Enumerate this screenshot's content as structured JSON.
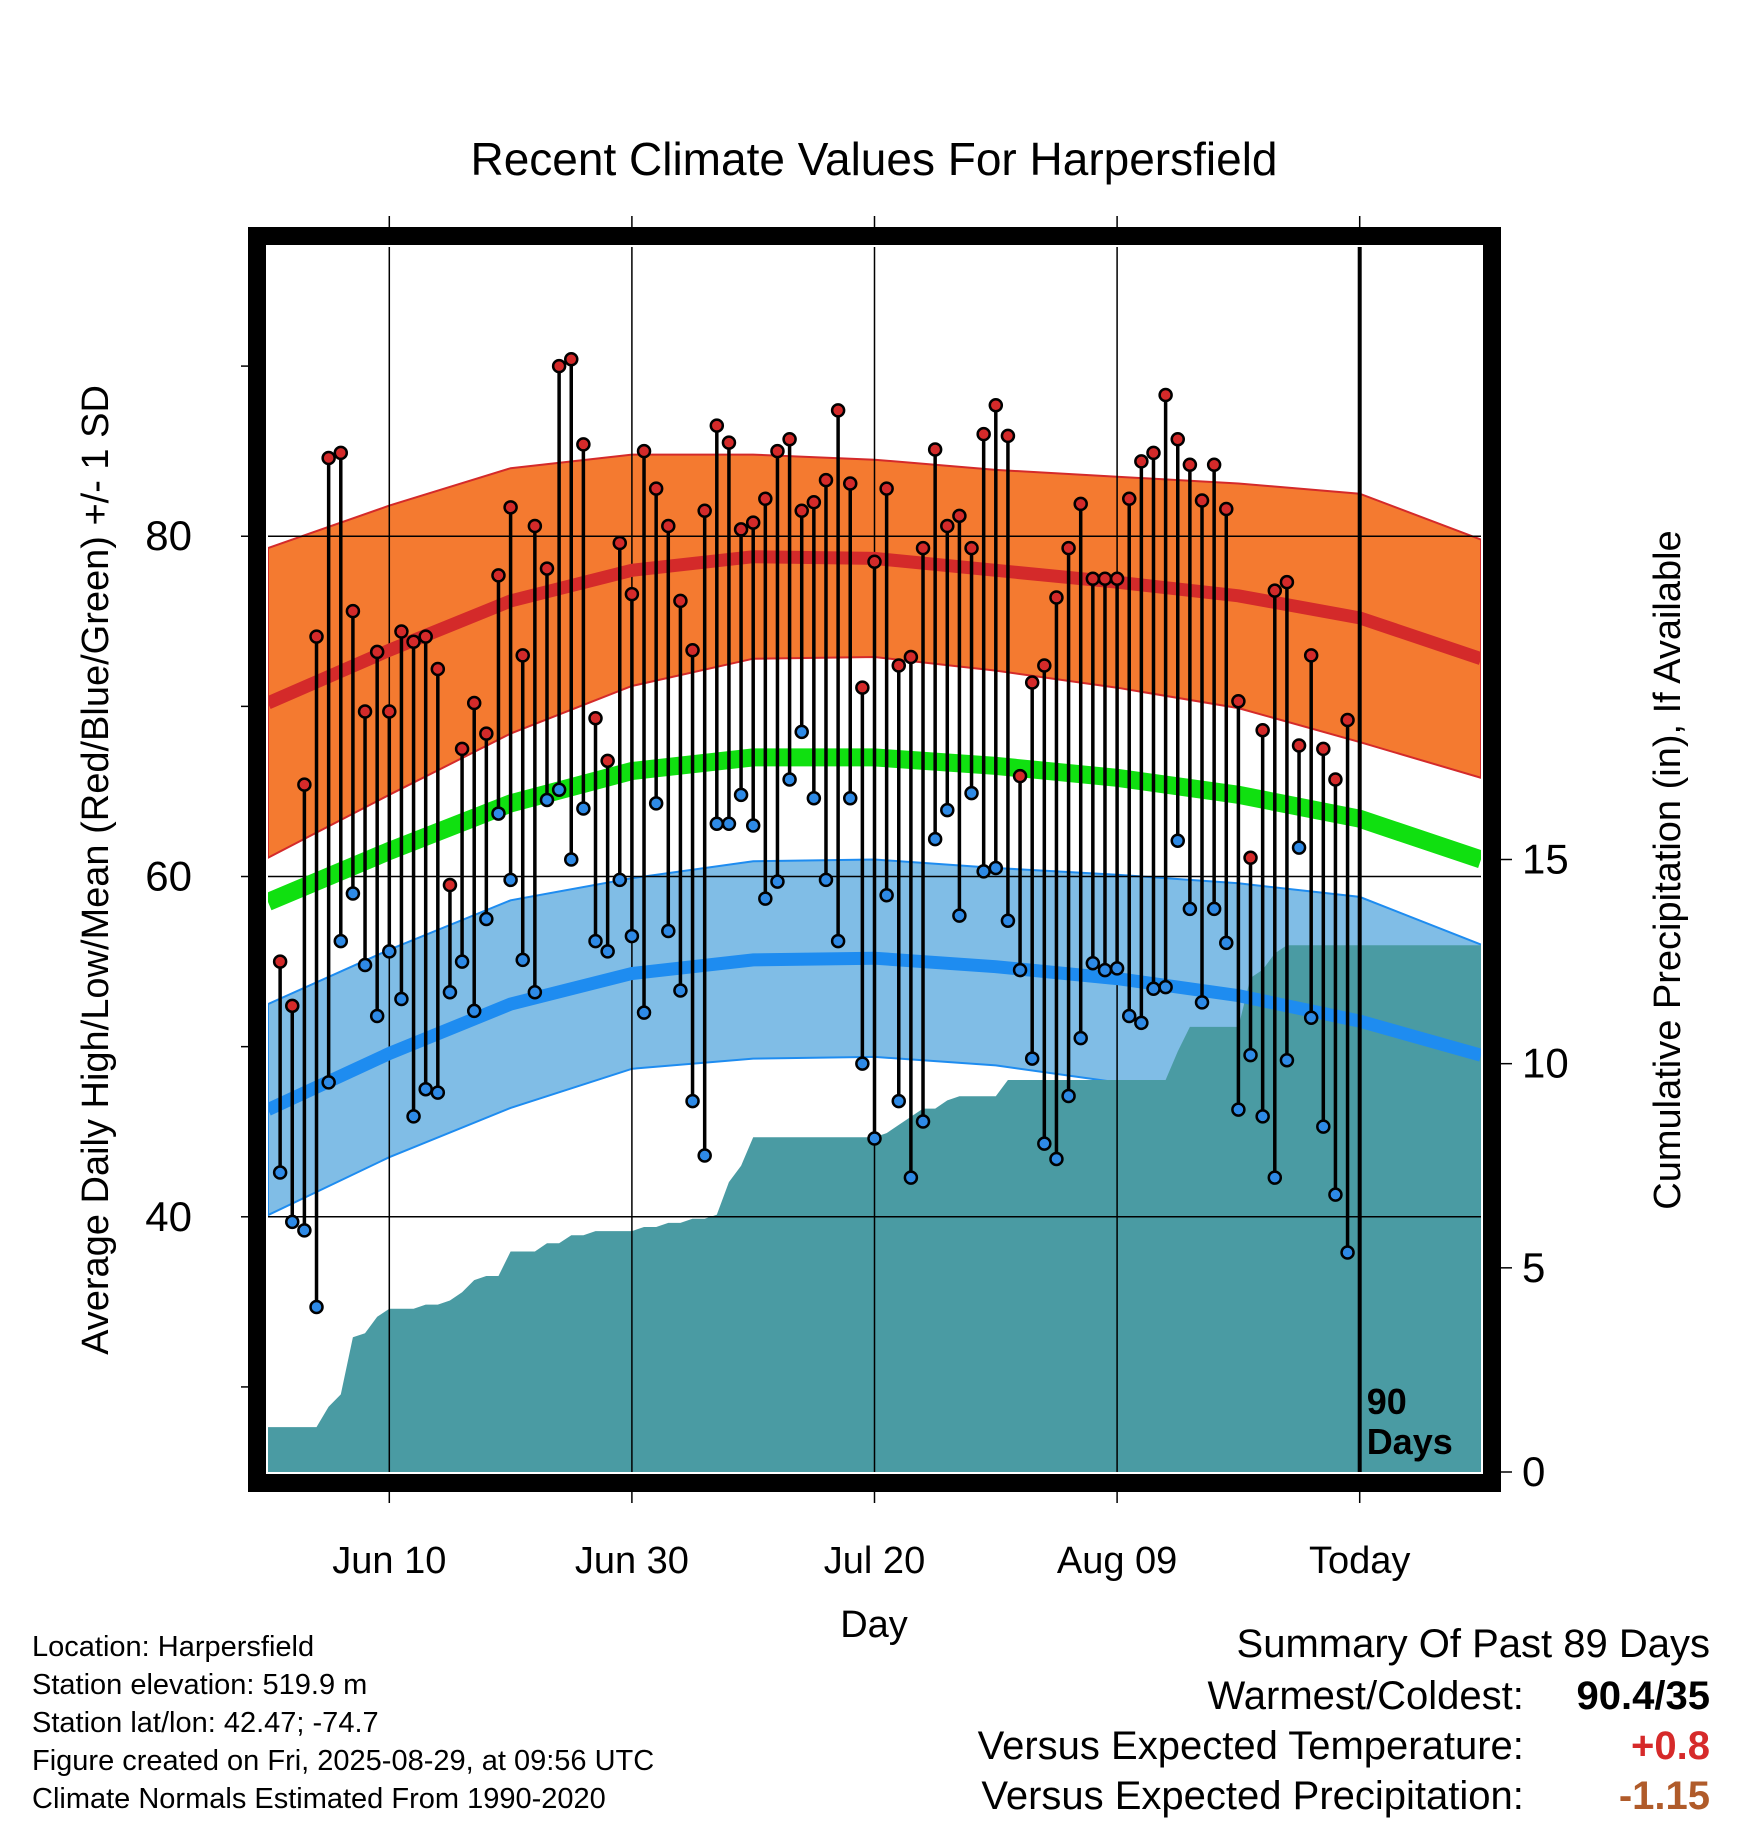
{
  "chart_data": {
    "type": "line",
    "title": "Recent Climate Values For Harpersfield",
    "xlabel": "Day",
    "ylabel": "Average Daily High/Low/Mean (Red/Blue/Green) +/- 1 SD",
    "y2label": "Cumulative Precipitation (in), If Available",
    "x_tick_labels": [
      "Jun 10",
      "Jun 30",
      "Jul 20",
      "Aug 09",
      "Today"
    ],
    "x_tick_days": [
      10,
      30,
      50,
      70,
      90
    ],
    "ylim": [
      25,
      97
    ],
    "y_ticks": [
      40,
      60,
      80
    ],
    "y2lim": [
      0,
      30
    ],
    "y2_ticks": [
      0,
      5,
      10,
      15
    ],
    "xlim": [
      0,
      100
    ],
    "marker_label": "90\nDays",
    "marker_day": 90,
    "normals": {
      "days": [
        0,
        10,
        20,
        30,
        40,
        50,
        60,
        70,
        80,
        90,
        100
      ],
      "high_mean": [
        70.2,
        73.3,
        76.2,
        78.0,
        78.8,
        78.7,
        78.0,
        77.3,
        76.5,
        75.2,
        72.8
      ],
      "high_sd": [
        9.1,
        8.5,
        7.8,
        6.8,
        6.0,
        5.8,
        5.9,
        6.2,
        6.6,
        7.3,
        7.0
      ],
      "low_mean": [
        46.3,
        49.6,
        52.5,
        54.3,
        55.1,
        55.2,
        54.7,
        54.0,
        53.0,
        51.5,
        49.5
      ],
      "low_sd": [
        6.2,
        6.1,
        6.1,
        5.6,
        5.8,
        5.8,
        5.8,
        6.1,
        6.6,
        7.3,
        6.5
      ],
      "mean": [
        58.5,
        61.5,
        64.3,
        66.2,
        67.0,
        67.0,
        66.5,
        65.8,
        64.8,
        63.4,
        61.0
      ]
    },
    "daily": {
      "days": [
        1,
        2,
        3,
        4,
        5,
        6,
        7,
        8,
        9,
        10,
        11,
        12,
        13,
        14,
        15,
        16,
        17,
        18,
        19,
        20,
        21,
        22,
        23,
        24,
        25,
        26,
        27,
        28,
        29,
        30,
        31,
        32,
        33,
        34,
        35,
        36,
        37,
        38,
        39,
        40,
        41,
        42,
        43,
        44,
        45,
        46,
        47,
        48,
        49,
        50,
        51,
        52,
        53,
        54,
        55,
        56,
        57,
        58,
        59,
        60,
        61,
        62,
        63,
        64,
        65,
        66,
        67,
        68,
        69,
        70,
        71,
        72,
        73,
        74,
        75,
        76,
        77,
        78,
        79,
        80,
        81,
        82,
        83,
        84,
        85,
        86,
        87,
        88,
        89
      ],
      "high": [
        55.0,
        52.4,
        65.4,
        74.1,
        84.6,
        84.9,
        75.6,
        69.7,
        73.2,
        69.7,
        74.4,
        73.8,
        74.1,
        72.2,
        59.5,
        67.5,
        70.2,
        68.4,
        77.7,
        81.7,
        73.0,
        80.6,
        78.1,
        90.0,
        90.4,
        85.4,
        69.3,
        66.8,
        79.6,
        76.6,
        85.0,
        82.8,
        80.6,
        76.2,
        73.3,
        81.5,
        86.5,
        85.5,
        80.4,
        80.8,
        82.2,
        85.0,
        85.7,
        81.5,
        82.0,
        83.3,
        87.4,
        83.1,
        71.1,
        78.5,
        82.8,
        72.4,
        72.9,
        79.3,
        85.1,
        80.6,
        81.2,
        79.3,
        86.0,
        87.7,
        85.9,
        65.9,
        71.4,
        72.4,
        76.4,
        79.3,
        81.9,
        77.5,
        77.5,
        77.5,
        82.2,
        84.4,
        84.9,
        88.3,
        85.7,
        84.2,
        82.1,
        84.2,
        81.6,
        70.3,
        61.1,
        68.6,
        76.8,
        77.3,
        67.7,
        73.0,
        67.5,
        65.7,
        69.2
      ],
      "low": [
        42.6,
        39.7,
        39.2,
        34.7,
        47.9,
        56.2,
        59.0,
        54.8,
        51.8,
        55.6,
        52.8,
        45.9,
        47.5,
        47.3,
        53.2,
        55.0,
        52.1,
        57.5,
        63.7,
        59.8,
        55.1,
        53.2,
        64.5,
        65.1,
        61.0,
        64.0,
        56.2,
        55.6,
        59.8,
        56.5,
        52.0,
        64.3,
        56.8,
        53.3,
        46.8,
        43.6,
        63.1,
        63.1,
        64.8,
        63.0,
        58.7,
        59.7,
        65.7,
        68.5,
        64.6,
        59.8,
        56.2,
        64.6,
        49.0,
        44.6,
        58.9,
        46.8,
        42.3,
        45.6,
        62.2,
        63.9,
        57.7,
        64.9,
        60.3,
        60.5,
        57.4,
        54.5,
        49.3,
        44.3,
        43.4,
        47.1,
        50.5,
        54.9,
        54.5,
        54.6,
        51.8,
        51.4,
        53.4,
        53.5,
        62.1,
        58.1,
        52.6,
        58.1,
        56.1,
        46.3,
        49.5,
        45.9,
        42.3,
        49.2,
        61.7,
        51.7,
        45.3,
        41.3,
        37.9
      ]
    },
    "precip": {
      "days": [
        0,
        4,
        5,
        6,
        7,
        8,
        9,
        10,
        11,
        12,
        13,
        14,
        15,
        16,
        17,
        18,
        19,
        20,
        21,
        22,
        23,
        24,
        25,
        26,
        27,
        28,
        29,
        30,
        31,
        32,
        33,
        34,
        35,
        36,
        37,
        38,
        39,
        40,
        41,
        42,
        43,
        44,
        45,
        46,
        47,
        48,
        49,
        50,
        51,
        52,
        53,
        54,
        55,
        56,
        57,
        58,
        59,
        60,
        61,
        62,
        63,
        64,
        65,
        66,
        67,
        68,
        69,
        70,
        71,
        72,
        73,
        74,
        75,
        76,
        77,
        78,
        79,
        80,
        81,
        82,
        83,
        84,
        85,
        86,
        87,
        88,
        89,
        90,
        100
      ],
      "cum": [
        1.1,
        1.1,
        1.6,
        1.9,
        3.3,
        3.4,
        3.8,
        4.0,
        4.0,
        4.0,
        4.1,
        4.1,
        4.2,
        4.4,
        4.7,
        4.8,
        4.8,
        5.4,
        5.4,
        5.4,
        5.6,
        5.6,
        5.8,
        5.8,
        5.9,
        5.9,
        5.9,
        5.9,
        6.0,
        6.0,
        6.1,
        6.1,
        6.2,
        6.2,
        6.3,
        7.1,
        7.5,
        8.2,
        8.2,
        8.2,
        8.2,
        8.2,
        8.2,
        8.2,
        8.2,
        8.2,
        8.2,
        8.2,
        8.3,
        8.5,
        8.7,
        8.9,
        8.9,
        9.1,
        9.2,
        9.2,
        9.2,
        9.2,
        9.6,
        9.6,
        9.6,
        9.6,
        9.6,
        9.6,
        9.6,
        9.6,
        9.6,
        9.6,
        9.6,
        9.6,
        9.6,
        9.6,
        10.3,
        10.9,
        10.9,
        10.9,
        10.9,
        10.9,
        12.1,
        12.3,
        12.7,
        12.9,
        12.9,
        12.9,
        12.9,
        12.9,
        12.9,
        12.9,
        12.9
      ]
    }
  },
  "colors": {
    "high_band": "#f47a30",
    "high_line": "#d42a2a",
    "low_band": "#80bde6",
    "low_line": "#1e8cf0",
    "mean_line": "#10e010",
    "precip": "#4a9ba3",
    "high_dot": "#d42a2a",
    "low_dot": "#2e8ae6",
    "summary_temp": "#d62a2a",
    "summary_precip": "#b05b2a"
  },
  "info": {
    "location": "Location: Harpersfield",
    "elevation": "Station elevation: 519.9 m",
    "latlon": "Station lat/lon: 42.47; -74.7",
    "created": "Figure created on Fri, 2025-08-29, at 09:56 UTC",
    "normals": "Climate Normals Estimated From 1990-2020"
  },
  "summary": {
    "title": "Summary Of Past 89 Days",
    "warmest_coldest_label": "Warmest/Coldest:",
    "warmest_coldest_value": "90.4/35",
    "temp_label": "Versus Expected Temperature:",
    "temp_value": "+0.8",
    "precip_label": "Versus Expected Precipitation:",
    "precip_value": "-1.15"
  }
}
